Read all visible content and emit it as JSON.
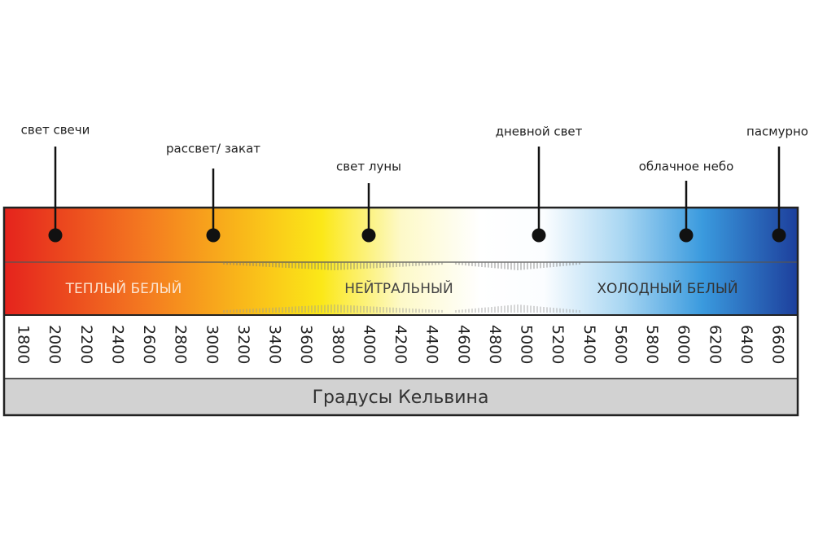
{
  "markers": [
    {
      "label": "свет свечи"
    },
    {
      "label": "рассвет/ закат"
    },
    {
      "label": "свет луны"
    },
    {
      "label": "дневной свет"
    },
    {
      "label": "облачное небо"
    },
    {
      "label": "пасмурно"
    }
  ],
  "zones": [
    "ТЕПЛЫЙ БЕЛЫЙ",
    "НЕЙТРАЛЬНЫЙ",
    "ХОЛОДНЫЙ БЕЛЫЙ"
  ],
  "scale": {
    "ticks": [
      1800,
      2000,
      2200,
      2400,
      2600,
      2800,
      3000,
      3200,
      3400,
      3600,
      3800,
      4000,
      4200,
      4400,
      4600,
      4800,
      5000,
      5200,
      5400,
      5600,
      5800,
      6000,
      6200,
      6400,
      6600
    ],
    "title": "Градусы Кельвина"
  }
}
